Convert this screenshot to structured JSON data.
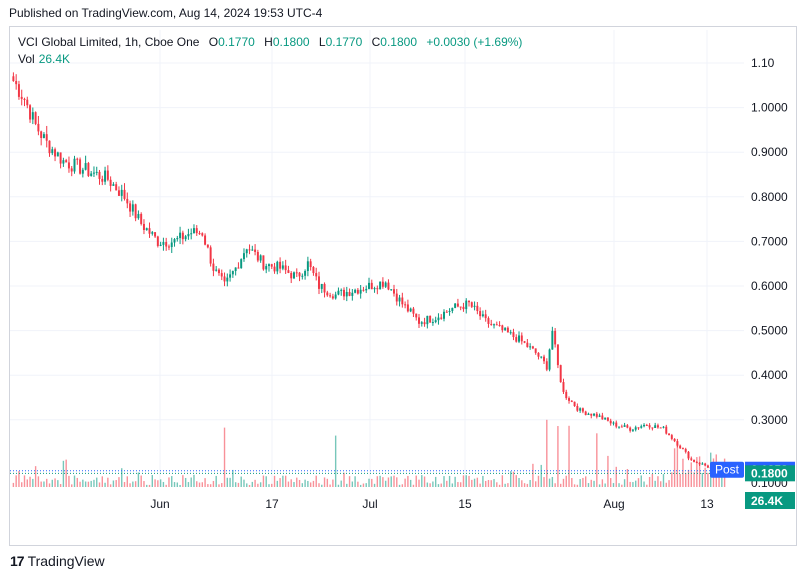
{
  "header": {
    "published": "Published on TradingView.com, Aug 14, 2024 19:53 UTC-4"
  },
  "legend": {
    "symbol": "VCI Global Limited, 1h, Cboe One",
    "open_label": "O",
    "open": "0.1770",
    "high_label": "H",
    "high": "0.1800",
    "low_label": "L",
    "low": "0.1770",
    "close_label": "C",
    "close": "0.1800",
    "change": "+0.0030 (+1.69%)",
    "vol_label": "Vol",
    "vol": "26.4K"
  },
  "badges": {
    "post_label": "Post",
    "post_value": "0.1858",
    "last_value": "0.1800",
    "vol_value": "26.4K"
  },
  "colors": {
    "up": "#089981",
    "down": "#f23645",
    "post": "#2962ff",
    "grid": "#f0f3fa"
  },
  "footer": {
    "brand": "TradingView"
  },
  "chart_data": {
    "type": "candlestick",
    "y_ticks": [
      "1.10",
      "1.0000",
      "0.9000",
      "0.8000",
      "0.7000",
      "0.6000",
      "0.5000",
      "0.4000",
      "0.3000",
      "0.1000"
    ],
    "ylim": [
      0.1,
      1.1
    ],
    "x_ticks": [
      "Jun",
      "17",
      "Jul",
      "15",
      "Aug",
      "13"
    ],
    "price_anchors": [
      [
        0,
        1.06
      ],
      [
        4,
        1.02
      ],
      [
        8,
        0.96
      ],
      [
        12,
        0.92
      ],
      [
        18,
        0.88
      ],
      [
        26,
        0.86
      ],
      [
        34,
        0.84
      ],
      [
        40,
        0.8
      ],
      [
        46,
        0.74
      ],
      [
        52,
        0.7
      ],
      [
        58,
        0.7
      ],
      [
        64,
        0.72
      ],
      [
        68,
        0.72
      ],
      [
        72,
        0.64
      ],
      [
        76,
        0.6
      ],
      [
        80,
        0.64
      ],
      [
        84,
        0.69
      ],
      [
        90,
        0.65
      ],
      [
        96,
        0.64
      ],
      [
        102,
        0.62
      ],
      [
        106,
        0.65
      ],
      [
        110,
        0.6
      ],
      [
        116,
        0.58
      ],
      [
        122,
        0.59
      ],
      [
        128,
        0.6
      ],
      [
        134,
        0.61
      ],
      [
        140,
        0.56
      ],
      [
        146,
        0.52
      ],
      [
        152,
        0.53
      ],
      [
        158,
        0.55
      ],
      [
        164,
        0.56
      ],
      [
        170,
        0.52
      ],
      [
        176,
        0.5
      ],
      [
        182,
        0.48
      ],
      [
        188,
        0.45
      ],
      [
        192,
        0.42
      ],
      [
        194,
        0.5
      ],
      [
        196,
        0.42
      ],
      [
        198,
        0.36
      ],
      [
        204,
        0.32
      ],
      [
        210,
        0.31
      ],
      [
        216,
        0.29
      ],
      [
        222,
        0.28
      ],
      [
        228,
        0.29
      ],
      [
        234,
        0.28
      ],
      [
        240,
        0.24
      ],
      [
        244,
        0.21
      ],
      [
        248,
        0.2
      ],
      [
        252,
        0.19
      ],
      [
        256,
        0.18
      ]
    ],
    "last_close": 0.18,
    "post_price": 0.1858
  }
}
